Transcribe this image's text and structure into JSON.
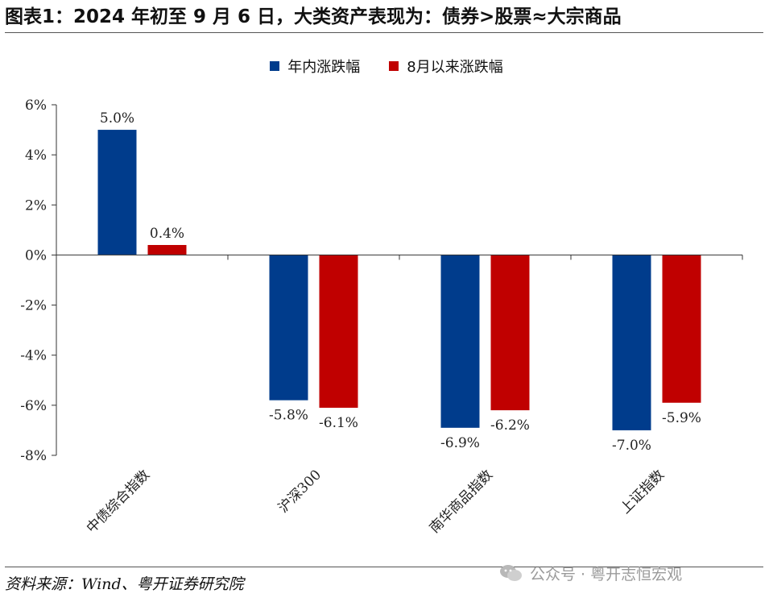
{
  "title": "图表1：2024 年初至 9 月 6 日，大类资产表现为：债券>股票≈大宗商品",
  "source": "资料来源：Wind、粤开证券研究院",
  "watermark": "公众号 · 粤开志恒宏观",
  "colors": {
    "series1": "#003C8C",
    "series2": "#C00000",
    "axis": "#333333"
  },
  "chart_data": {
    "type": "bar",
    "title": "",
    "categories": [
      "中债综合指数",
      "沪深300",
      "南华商品指数",
      "上证指数"
    ],
    "series": [
      {
        "name": "年内涨跌幅",
        "values": [
          5.0,
          -5.8,
          -6.9,
          -7.0
        ],
        "labels": [
          "5.0%",
          "-5.8%",
          "-6.9%",
          "-7.0%"
        ]
      },
      {
        "name": "8月以来涨跌幅",
        "values": [
          0.4,
          -6.1,
          -6.2,
          -5.9
        ],
        "labels": [
          "0.4%",
          "-6.1%",
          "-6.2%",
          "-5.9%"
        ]
      }
    ],
    "ylim": [
      -8,
      6
    ],
    "yticks": [
      6,
      4,
      2,
      0,
      -2,
      -4,
      -6,
      -8
    ],
    "ytick_labels": [
      "6%",
      "4%",
      "2%",
      "0%",
      "-2%",
      "-4%",
      "-6%",
      "-8%"
    ],
    "xlabel": "",
    "ylabel": "",
    "legend_position": "top-center",
    "grid": false
  }
}
